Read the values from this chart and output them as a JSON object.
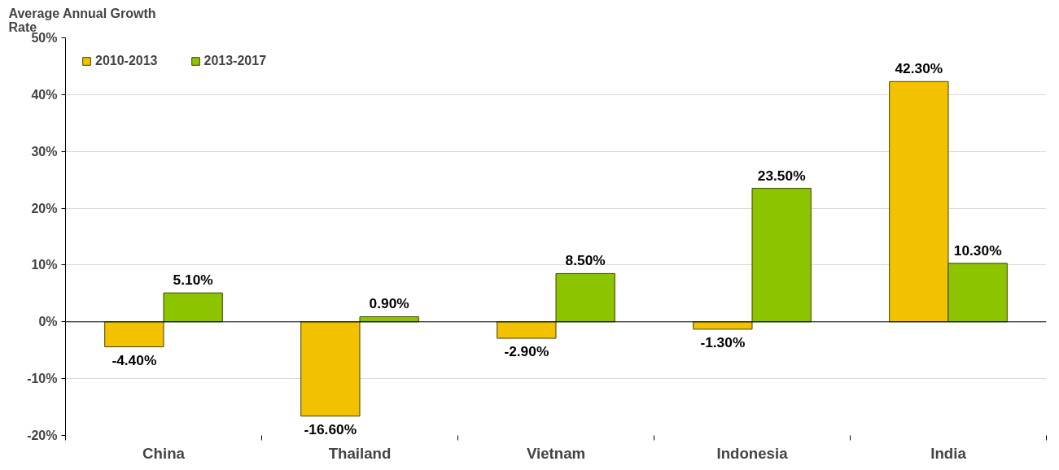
{
  "chart_data": {
    "type": "bar",
    "ylabel": "Average Annual Growth Rate",
    "categories": [
      "China",
      "Thailand",
      "Vietnam",
      "Indonesia",
      "India"
    ],
    "series": [
      {
        "name": "2010-2013",
        "color": "#f2c200",
        "values": [
          -4.4,
          -16.6,
          -2.9,
          -1.3,
          42.3
        ],
        "value_labels": [
          "-4.40%",
          "-16.60%",
          "-2.90%",
          "-1.30%",
          "42.30%"
        ]
      },
      {
        "name": "2013-2017",
        "color": "#8cc400",
        "values": [
          5.1,
          0.9,
          8.5,
          23.5,
          10.3
        ],
        "value_labels": [
          "5.10%",
          "0.90%",
          "8.50%",
          "23.50%",
          "10.30%"
        ]
      }
    ],
    "ylim": [
      -20,
      50
    ],
    "yticks": [
      {
        "value": -20,
        "label": "-20%"
      },
      {
        "value": -10,
        "label": "-10%"
      },
      {
        "value": 0,
        "label": "0%"
      },
      {
        "value": 10,
        "label": "10%"
      },
      {
        "value": 20,
        "label": "20%"
      },
      {
        "value": 30,
        "label": "30%"
      },
      {
        "value": 40,
        "label": "40%"
      },
      {
        "value": 50,
        "label": "50%"
      }
    ],
    "grid": "y",
    "legend": "top left"
  }
}
